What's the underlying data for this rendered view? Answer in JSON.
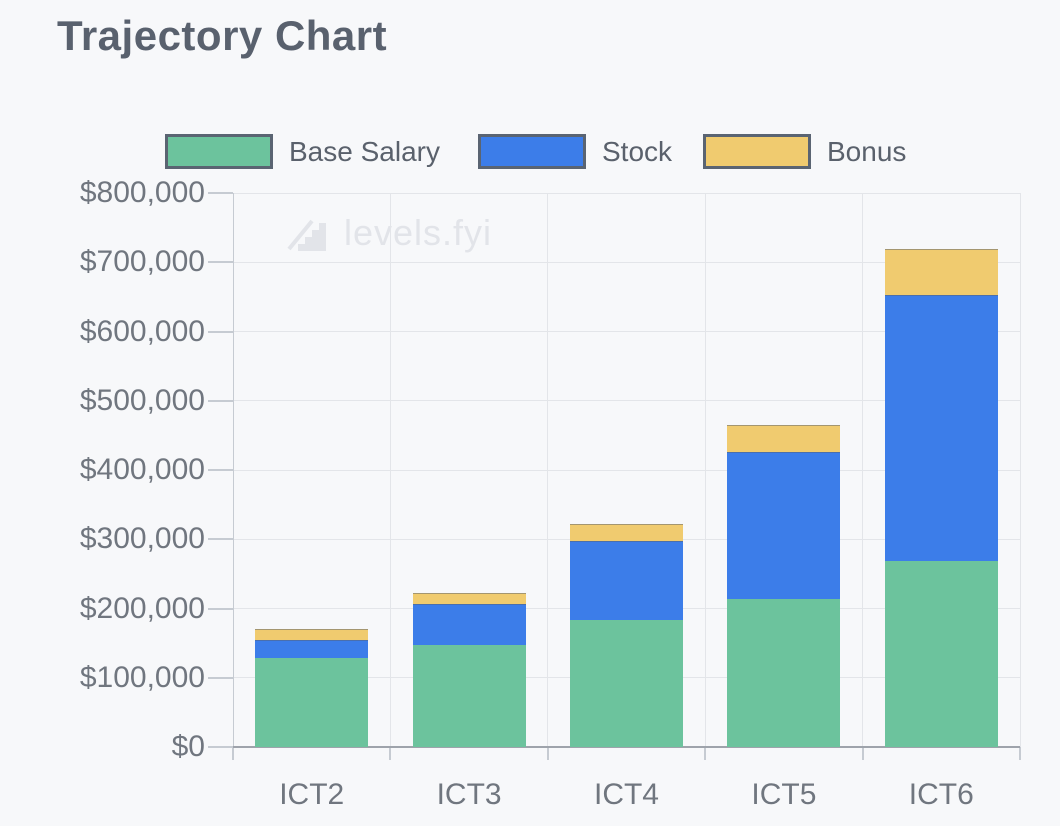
{
  "page": {
    "title": "Trajectory Chart",
    "background": "#F7F8FA"
  },
  "watermark": {
    "text": "levels.fyi",
    "icon": "stairs-icon",
    "color": "#E2E4E9"
  },
  "chart_data": {
    "type": "bar",
    "stacked": true,
    "title": "Trajectory Chart",
    "categories": [
      "ICT2",
      "ICT3",
      "ICT4",
      "ICT5",
      "ICT6"
    ],
    "series": [
      {
        "name": "Base Salary",
        "color": "#6CC39D",
        "values": [
          128000,
          147000,
          184000,
          213000,
          268000
        ]
      },
      {
        "name": "Stock",
        "color": "#3C7DE9",
        "values": [
          27000,
          60000,
          113000,
          213000,
          384000
        ]
      },
      {
        "name": "Bonus",
        "color": "#F0CB6F",
        "values": [
          16000,
          15000,
          25000,
          39000,
          67000
        ]
      }
    ],
    "y_axis": {
      "min": 0,
      "max": 800000,
      "tick_step": 100000,
      "tick_labels": [
        "$0",
        "$100,000",
        "$200,000",
        "$300,000",
        "$400,000",
        "$500,000",
        "$600,000",
        "$700,000",
        "$800,000"
      ]
    },
    "legend": {
      "position": "top",
      "swatch_border_color": "#5A6472"
    },
    "grid": {
      "horizontal": true,
      "vertical": true,
      "color": "#E3E5E9",
      "axis_color": "#9EA3AB",
      "tick_color": "#C6CBD2"
    }
  }
}
